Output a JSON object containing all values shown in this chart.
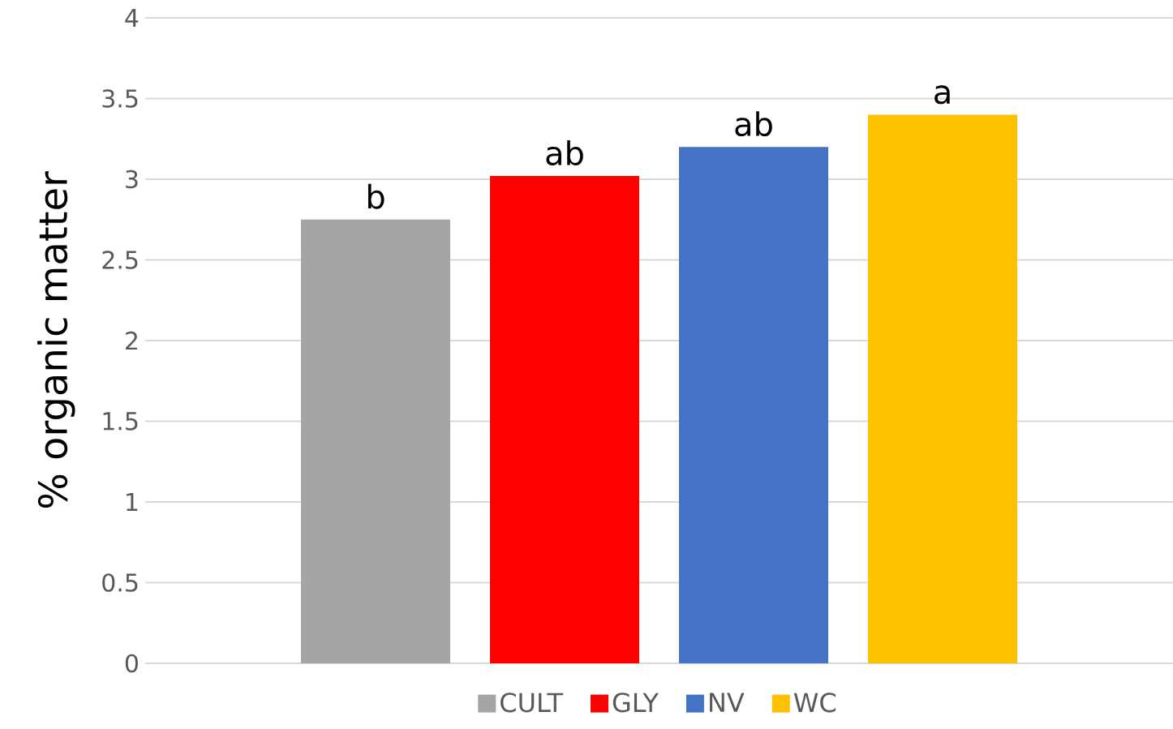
{
  "chart_data": {
    "type": "bar",
    "ylabel": "% organic matter",
    "categories": [
      null
    ],
    "series": [
      {
        "name": "CULT",
        "color": "#a5a5a5",
        "values": [
          2.75
        ],
        "value_labels": [
          "b"
        ]
      },
      {
        "name": "GLY",
        "color": "#ff0000",
        "values": [
          3.02
        ],
        "value_labels": [
          "ab"
        ]
      },
      {
        "name": "NV",
        "color": "#4472c4",
        "values": [
          3.2
        ],
        "value_labels": [
          "ab"
        ]
      },
      {
        "name": "WC",
        "color": "#ffc000",
        "values": [
          3.4
        ],
        "value_labels": [
          "a"
        ]
      }
    ],
    "ylim": [
      0,
      4
    ],
    "yticks": [
      0,
      0.5,
      1,
      1.5,
      2,
      2.5,
      3,
      3.5,
      4
    ],
    "grid": "y",
    "legend": "bottom"
  }
}
